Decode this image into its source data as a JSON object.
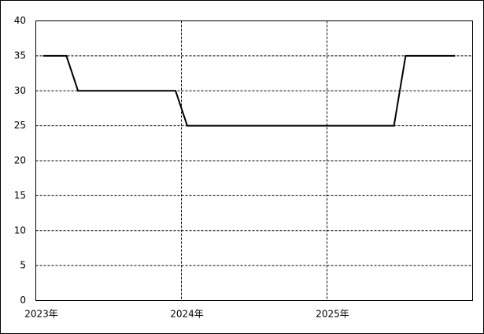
{
  "chart_data": {
    "type": "line",
    "x": [
      2023.05,
      2023.21,
      2023.29,
      2023.96,
      2024.04,
      2025.46,
      2025.54,
      2025.88
    ],
    "series": [
      {
        "color": "#000000",
        "values": [
          35,
          35,
          30,
          30,
          25,
          25,
          35,
          35
        ]
      }
    ],
    "xlim": [
      2023,
      2026
    ],
    "xticks": [
      {
        "value": 2023,
        "label": "2023年"
      },
      {
        "value": 2024,
        "label": "2024年"
      },
      {
        "value": 2025,
        "label": "2025年"
      }
    ],
    "ylim": [
      0,
      40
    ],
    "yticks": [
      0,
      5,
      10,
      15,
      20,
      25,
      30,
      35,
      40
    ],
    "grid": true
  }
}
